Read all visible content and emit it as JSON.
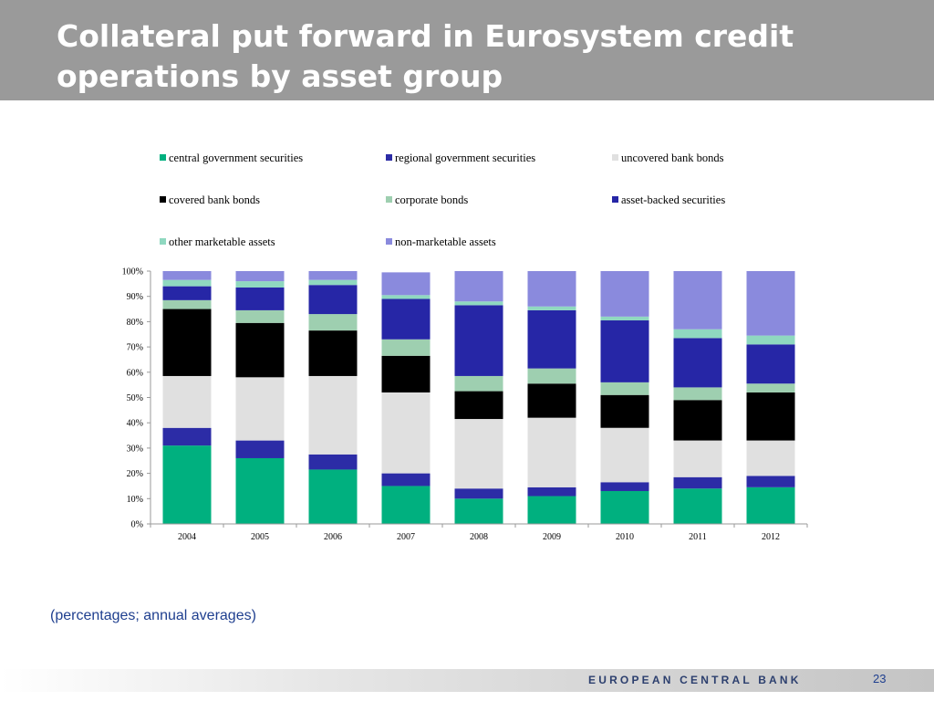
{
  "header": {
    "title_line1": "Collateral put forward in Eurosystem credit",
    "title_line2": "operations by asset group"
  },
  "subtitle": "(percentages; annual averages)",
  "footer": {
    "bank_name": "EUROPEAN CENTRAL BANK",
    "page_number": "23"
  },
  "chart_data": {
    "type": "bar",
    "stacked": true,
    "categories": [
      "2004",
      "2005",
      "2006",
      "2007",
      "2008",
      "2009",
      "2010",
      "2011",
      "2012"
    ],
    "series": [
      {
        "name": "central government securities",
        "color": "#00b07f",
        "values": [
          31,
          26,
          21.5,
          15,
          10,
          11,
          13,
          14,
          14.5
        ]
      },
      {
        "name": "regional government securities",
        "color": "#2c2ca6",
        "values": [
          7,
          7,
          6,
          5,
          4,
          3.5,
          3.5,
          4.5,
          4.5
        ]
      },
      {
        "name": "uncovered bank bonds",
        "color": "#e0e0e0",
        "values": [
          20.5,
          25,
          31,
          32,
          27.5,
          27.5,
          21.5,
          14.5,
          14
        ]
      },
      {
        "name": "covered bank bonds",
        "color": "#000000",
        "values": [
          26.5,
          21.5,
          18,
          14.5,
          11,
          13.5,
          13,
          16,
          19
        ]
      },
      {
        "name": "corporate bonds",
        "color": "#9ecfb0",
        "values": [
          3.5,
          5,
          6.5,
          6.5,
          6,
          6,
          5,
          5,
          3.5
        ]
      },
      {
        "name": "asset-backed securities",
        "color": "#2626a6",
        "values": [
          5.5,
          9,
          11.5,
          16,
          28,
          23,
          24.5,
          19.5,
          15.5
        ]
      },
      {
        "name": "other marketable assets",
        "color": "#8fd8c0",
        "values": [
          2.5,
          2.5,
          2,
          1.5,
          1.5,
          1.5,
          1.5,
          3.5,
          3.5
        ]
      },
      {
        "name": "non-marketable assets",
        "color": "#8a8add",
        "values": [
          3.5,
          4,
          3.5,
          9,
          12,
          14,
          18,
          23,
          25.5
        ]
      }
    ],
    "y_ticks": [
      "0%",
      "10%",
      "20%",
      "30%",
      "40%",
      "50%",
      "60%",
      "70%",
      "80%",
      "90%",
      "100%"
    ],
    "ylim": [
      0,
      100
    ],
    "legend_position": "top",
    "grid": false
  }
}
